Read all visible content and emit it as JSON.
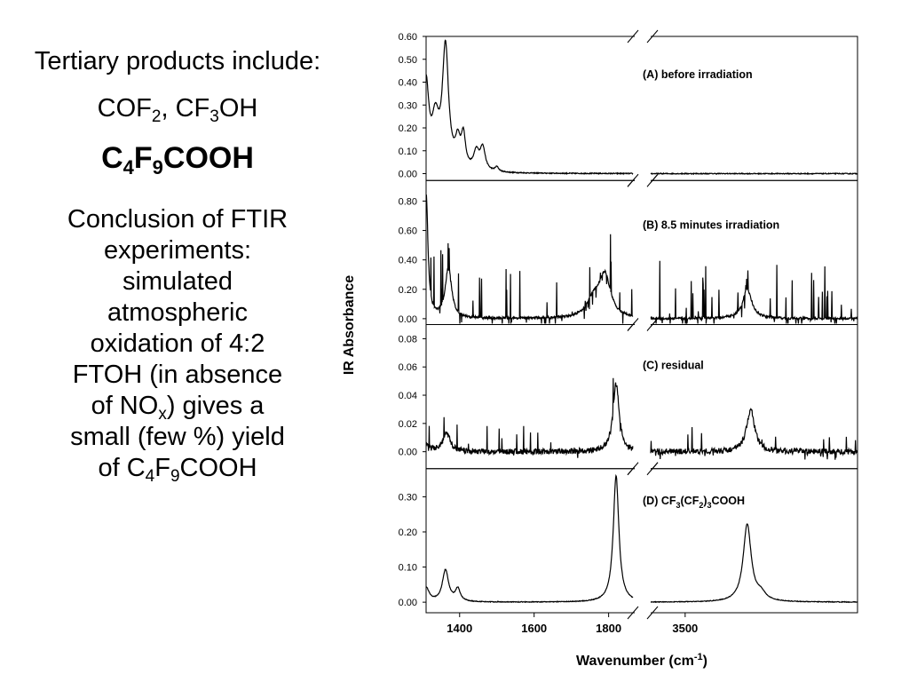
{
  "left_text": {
    "line1": "Tertiary products include:",
    "line2_parts": [
      "COF",
      "2",
      ", CF",
      "3",
      "OH"
    ],
    "line3_parts": [
      "C",
      "4",
      "F",
      "9",
      "COOH"
    ],
    "conclusion_lines": [
      "Conclusion of FTIR",
      "experiments:",
      "simulated",
      "atmospheric",
      "oxidation of 4:2",
      "FTOH (in absence"
    ],
    "nox_parts": [
      "of NO",
      "x",
      ") gives a"
    ],
    "line_small": "small (few %) yield",
    "last_parts": [
      "of C",
      "4",
      "F",
      "9",
      "COOH"
    ]
  },
  "chart_data": {
    "type": "line",
    "ylabel": "IR Absorbance",
    "xlabel_parts": [
      "Wavenumber (cm",
      "-1",
      ")"
    ],
    "x_ticks": [
      "1400",
      "1600",
      "1800",
      "3500"
    ],
    "x_tick_values": [
      1400,
      1600,
      1800,
      3500
    ],
    "x_segment_left": [
      1310,
      1870
    ],
    "x_segment_right": [
      3400,
      4000
    ],
    "panels": [
      {
        "label_parts": [
          "(A) before irradiation"
        ],
        "ylim": [
          -0.03,
          0.6
        ],
        "yticks": [
          "0.60",
          "0.50",
          "0.40",
          "0.30",
          "0.20",
          "0.10",
          "0.00"
        ],
        "ytick_values": [
          0.6,
          0.5,
          0.4,
          0.3,
          0.2,
          0.1,
          0.0
        ],
        "peaks": [
          [
            1310,
            0.37,
            9
          ],
          [
            1335,
            0.2,
            12
          ],
          [
            1362,
            0.53,
            10
          ],
          [
            1395,
            0.11,
            8
          ],
          [
            1410,
            0.14,
            7
          ],
          [
            1445,
            0.08,
            9
          ],
          [
            1462,
            0.1,
            8
          ],
          [
            1500,
            0.02,
            6
          ]
        ],
        "noise": 0.002,
        "spikes": 0
      },
      {
        "label_parts": [
          "(B) 8.5 minutes irradiation"
        ],
        "ylim": [
          -0.04,
          0.94
        ],
        "yticks": [
          "0.80",
          "0.60",
          "0.40",
          "0.20",
          "0.00"
        ],
        "ytick_values": [
          0.8,
          0.6,
          0.4,
          0.2,
          0.0
        ],
        "peaks": [
          [
            1310,
            0.85,
            6
          ],
          [
            1370,
            0.35,
            10
          ],
          [
            1790,
            0.28,
            18
          ],
          [
            1760,
            0.12,
            22
          ],
          [
            3680,
            0.2,
            16
          ]
        ],
        "noise": 0.008,
        "spikes": 60,
        "spike_max": 0.4
      },
      {
        "label_parts": [
          "(C) residual"
        ],
        "ylim": [
          -0.012,
          0.09
        ],
        "yticks": [
          "0.08",
          "0.06",
          "0.04",
          "0.02",
          "0.00"
        ],
        "ytick_values": [
          0.08,
          0.06,
          0.04,
          0.02,
          0.0
        ],
        "peaks": [
          [
            1310,
            0.005,
            10
          ],
          [
            1365,
            0.013,
            12
          ],
          [
            1820,
            0.048,
            10
          ],
          [
            3690,
            0.03,
            14
          ]
        ],
        "noise": 0.002,
        "spikes": 30,
        "spike_max": 0.022
      },
      {
        "label_parts": [
          "(D) CF",
          "3",
          "(CF",
          "2",
          ")",
          "3",
          "COOH"
        ],
        "ylim": [
          -0.03,
          0.38
        ],
        "yticks": [
          "0.30",
          "0.20",
          "0.10",
          "0.00"
        ],
        "ytick_values": [
          0.3,
          0.2,
          0.1,
          0.0
        ],
        "peaks": [
          [
            1310,
            0.04,
            10
          ],
          [
            1362,
            0.09,
            10
          ],
          [
            1395,
            0.035,
            8
          ],
          [
            1820,
            0.36,
            9
          ],
          [
            3680,
            0.22,
            14
          ],
          [
            3720,
            0.02,
            16
          ]
        ],
        "noise": 0.001,
        "spikes": 0
      }
    ]
  }
}
